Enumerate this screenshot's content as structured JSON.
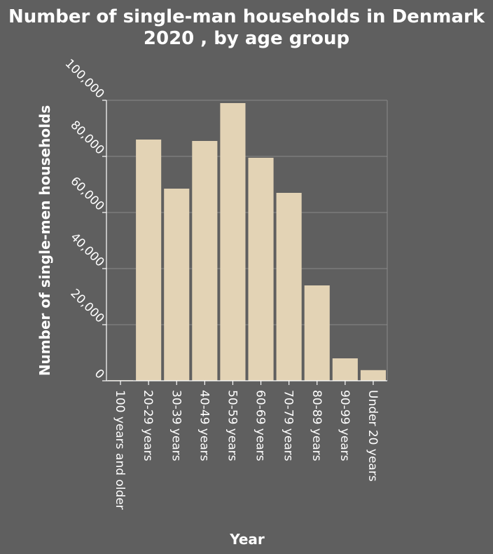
{
  "chart_data": {
    "type": "bar",
    "title_line1": "Number of single-man households in Denmark",
    "title_line2": "2020 , by age group",
    "xlabel": "Year",
    "ylabel": "Number of single-men households",
    "categories": [
      "100 years and older",
      "20-29 years",
      "30-39 years",
      "40-49 years",
      "50-59 years",
      "60-69 years",
      "70-79 years",
      "80-89 years",
      "90-99 years",
      "Under 20 years"
    ],
    "values": [
      200,
      86000,
      68500,
      85500,
      99000,
      79500,
      67000,
      34000,
      8000,
      3800
    ],
    "yticks": [
      "0",
      "20,000",
      "40,000",
      "60,000",
      "80,000",
      "100,000"
    ],
    "ylim": [
      0,
      100000
    ],
    "grid": true,
    "colors": {
      "bar": "#e3d3b5",
      "background": "#5f5f5f"
    }
  }
}
